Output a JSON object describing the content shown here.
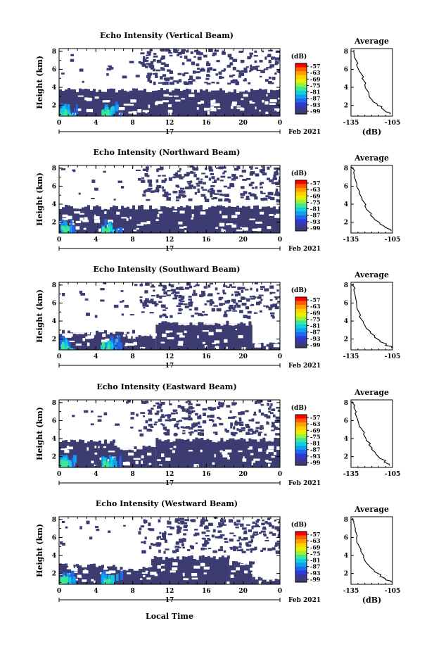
{
  "chart_data": {
    "type": "heatmap",
    "xlabel": "Local Time",
    "x_ticks": [
      "0",
      "4",
      "8",
      "12",
      "16",
      "20",
      "0"
    ],
    "day_label": "17",
    "date_label": "Feb 2021",
    "ylabel": "Height (km)",
    "y_ticks": [
      "2",
      "4",
      "6",
      "8"
    ],
    "xlim": [
      0,
      24
    ],
    "ylim": [
      0.8,
      8.3
    ],
    "colorbar": {
      "unit": "(dB)",
      "ticks": [
        "-57",
        "-63",
        "-69",
        "-75",
        "-81",
        "-87",
        "-93",
        "-99"
      ],
      "colors": [
        "#ff0000",
        "#ff5a00",
        "#ffa000",
        "#ffd000",
        "#e8f000",
        "#9af23a",
        "#3ce896",
        "#10d0e0",
        "#10a0f0",
        "#2068f0",
        "#3038d8",
        "#3838a0",
        "#3c3c72"
      ]
    },
    "average_panel": {
      "title": "Average",
      "xlabel": "(dB)",
      "x_ticks": [
        "-135",
        "-105"
      ],
      "y_ticks": [
        "2",
        "4",
        "6",
        "8"
      ],
      "xlim": [
        -135,
        -105
      ]
    },
    "beams": [
      {
        "name": "Echo Intensity (Vertical Beam)",
        "segments": [
          [
            0,
            24,
            3.6
          ]
        ],
        "profile": [
          [
            1.0,
            -107
          ],
          [
            1.3,
            -110
          ],
          [
            1.7,
            -113
          ],
          [
            2.0,
            -116
          ],
          [
            2.4,
            -119
          ],
          [
            2.8,
            -121
          ],
          [
            3.3,
            -122
          ],
          [
            3.8,
            -124
          ],
          [
            4.3,
            -125
          ],
          [
            5.0,
            -127
          ],
          [
            5.8,
            -129
          ],
          [
            6.5,
            -131
          ],
          [
            7.2,
            -132
          ],
          [
            8.0,
            -133
          ]
        ]
      },
      {
        "name": "Echo Intensity (Northward Beam)",
        "segments": [
          [
            0,
            24,
            3.6
          ]
        ],
        "profile": [
          [
            1.0,
            -106
          ],
          [
            1.4,
            -110
          ],
          [
            1.8,
            -114
          ],
          [
            2.3,
            -118
          ],
          [
            2.8,
            -121
          ],
          [
            3.3,
            -123
          ],
          [
            3.8,
            -125
          ],
          [
            4.5,
            -127
          ],
          [
            5.2,
            -129
          ],
          [
            6.0,
            -131
          ],
          [
            6.8,
            -132
          ],
          [
            7.6,
            -133
          ],
          [
            8.0,
            -134
          ]
        ]
      },
      {
        "name": "Echo Intensity (Southward Beam)",
        "segments": [
          [
            0,
            8,
            2.7
          ],
          [
            8,
            10.5,
            2.2
          ],
          [
            10.5,
            21,
            3.7
          ],
          [
            21,
            24,
            1.3
          ]
        ],
        "profile": [
          [
            1.0,
            -106
          ],
          [
            1.3,
            -110
          ],
          [
            1.7,
            -114
          ],
          [
            2.2,
            -118
          ],
          [
            2.7,
            -121
          ],
          [
            3.2,
            -124
          ],
          [
            3.8,
            -126
          ],
          [
            4.5,
            -129
          ],
          [
            5.2,
            -130
          ],
          [
            6.0,
            -131
          ],
          [
            6.8,
            -132
          ],
          [
            7.5,
            -133
          ],
          [
            8.0,
            -134
          ]
        ]
      },
      {
        "name": "Echo Intensity (Eastward Beam)",
        "segments": [
          [
            0,
            6,
            3.6
          ],
          [
            6,
            10.5,
            2.9
          ],
          [
            10.5,
            24,
            3.8
          ]
        ],
        "profile": [
          [
            1.0,
            -107
          ],
          [
            1.4,
            -111
          ],
          [
            1.8,
            -114
          ],
          [
            2.3,
            -117
          ],
          [
            2.8,
            -120
          ],
          [
            3.3,
            -122
          ],
          [
            3.8,
            -124
          ],
          [
            4.5,
            -126
          ],
          [
            5.2,
            -128
          ],
          [
            6.0,
            -130
          ],
          [
            6.8,
            -132
          ],
          [
            7.5,
            -133
          ],
          [
            8.0,
            -134
          ]
        ]
      },
      {
        "name": "Echo Intensity (Westward Beam)",
        "segments": [
          [
            0,
            6,
            2.8
          ],
          [
            6,
            10,
            2.5
          ],
          [
            10,
            18.5,
            3.7
          ],
          [
            18.5,
            21,
            3.1
          ],
          [
            21,
            24,
            1.3
          ]
        ],
        "profile": [
          [
            1.0,
            -106
          ],
          [
            1.3,
            -110
          ],
          [
            1.7,
            -114
          ],
          [
            2.2,
            -118
          ],
          [
            2.7,
            -121
          ],
          [
            3.2,
            -124
          ],
          [
            3.8,
            -126
          ],
          [
            4.5,
            -128
          ],
          [
            5.3,
            -130
          ],
          [
            6.0,
            -131
          ],
          [
            6.8,
            -132
          ],
          [
            7.6,
            -133
          ],
          [
            8.0,
            -134
          ]
        ]
      }
    ]
  }
}
